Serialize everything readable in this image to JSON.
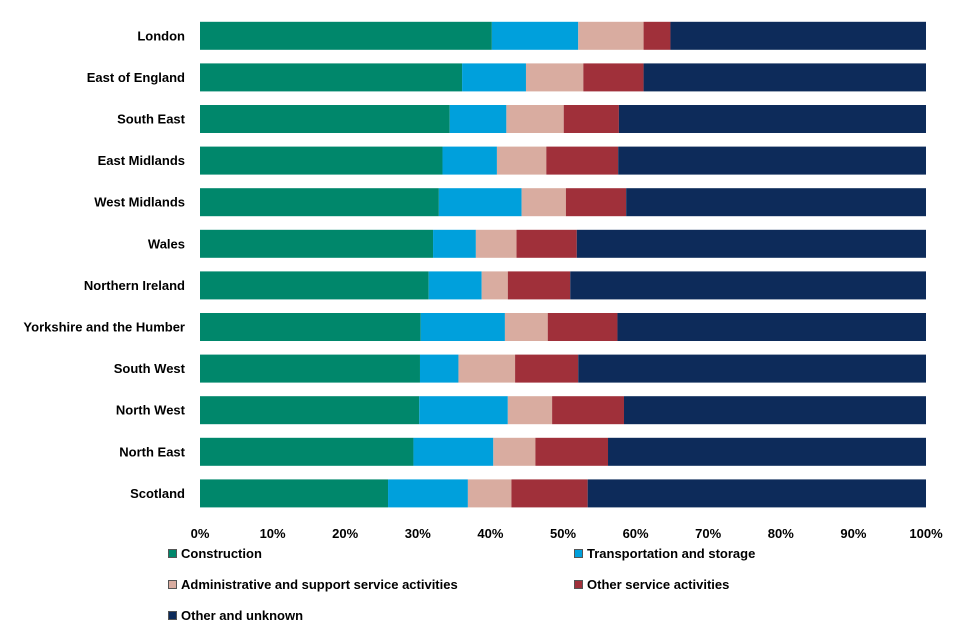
{
  "chart_data": {
    "type": "bar",
    "orientation": "horizontal",
    "stacked": true,
    "categories": [
      "London",
      "East of England",
      "South East",
      "East Midlands",
      "West Midlands",
      "Wales",
      "Northern Ireland",
      "Yorkshire and the Humber",
      "South West",
      "North West",
      "North East",
      "Scotland"
    ],
    "series": [
      {
        "name": "Construction",
        "color": "#00876b",
        "values": [
          40.2,
          36.1,
          34.4,
          33.4,
          32.9,
          32.1,
          31.5,
          30.4,
          30.3,
          30.2,
          29.4,
          25.9
        ]
      },
      {
        "name": "Transportation and storage",
        "color": "#00a0dc",
        "values": [
          11.9,
          8.8,
          7.8,
          7.5,
          11.4,
          5.9,
          7.3,
          11.6,
          5.3,
          12.2,
          11.0,
          11.0
        ]
      },
      {
        "name": "Administrative and support service activities",
        "color": "#d9aca0",
        "values": [
          9.0,
          7.9,
          7.9,
          6.8,
          6.1,
          5.6,
          3.6,
          5.9,
          7.8,
          6.1,
          5.8,
          6.0
        ]
      },
      {
        "name": "Other service activities",
        "color": "#a0303a",
        "values": [
          3.7,
          8.3,
          7.6,
          9.9,
          8.3,
          8.3,
          8.6,
          9.6,
          8.7,
          9.9,
          10.0,
          10.5
        ]
      },
      {
        "name": "Other and unknown",
        "color": "#0d2b5a",
        "values": [
          35.2,
          38.9,
          42.3,
          42.4,
          41.3,
          48.1,
          49.0,
          42.5,
          47.9,
          41.6,
          43.8,
          46.6
        ]
      }
    ],
    "xticks": [
      "0%",
      "10%",
      "20%",
      "30%",
      "40%",
      "50%",
      "60%",
      "70%",
      "80%",
      "90%",
      "100%"
    ],
    "xlim": [
      0,
      100
    ],
    "grid": false,
    "legend_position": "bottom"
  }
}
